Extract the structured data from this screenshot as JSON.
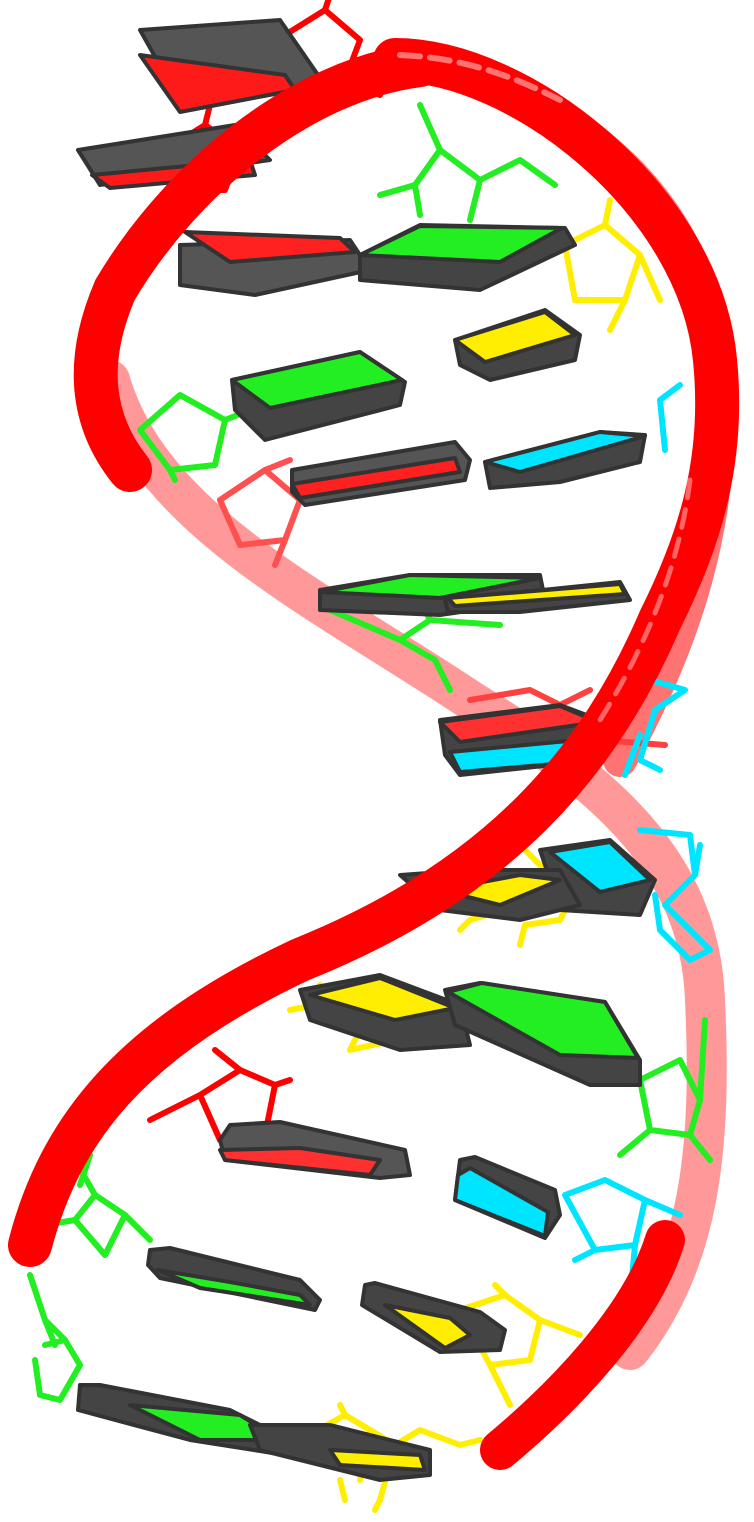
{
  "image": {
    "subject": "dna-double-helix-cartoon",
    "background": "#ffffff",
    "colors": {
      "backbone": "#ff0000",
      "adenine": "#ffff00",
      "thymine": "#00ffff",
      "guanine": "#00ff00",
      "cytosine": "#ff0000",
      "slab_edge": "#555555"
    }
  }
}
